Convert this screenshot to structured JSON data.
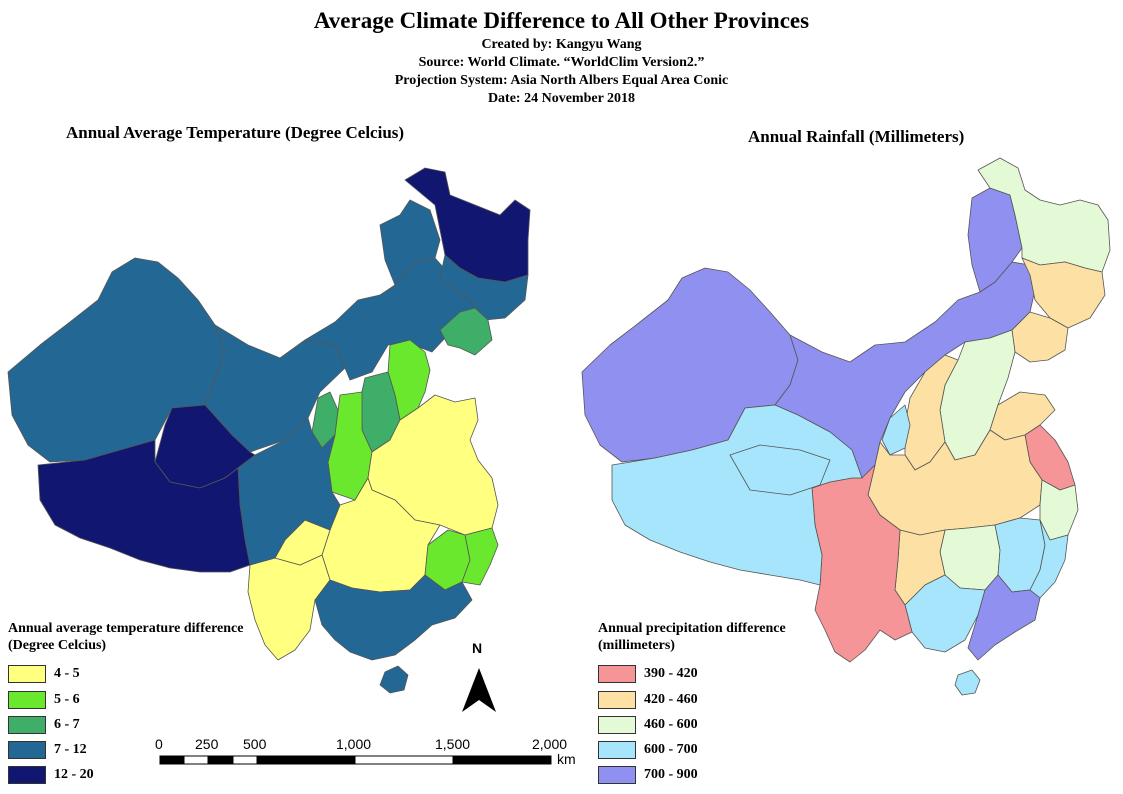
{
  "title": "Average Climate Difference to All Other Provinces",
  "credits": {
    "author": "Created by: Kangyu Wang",
    "source": "Source: World Climate. “WorldClim Version2.”",
    "projection": "Projection System: Asia North Albers Equal Area Conic",
    "date": "Date: 24 November 2018"
  },
  "maps": {
    "temperature": {
      "title": "Annual Average Temperature (Degree Celcius)",
      "legend_title_line1": "Annual average temperature difference",
      "legend_title_line2": "(Degree Celcius)",
      "classes": [
        {
          "label": "4 - 5",
          "color": "#ffff80"
        },
        {
          "label": "5 - 6",
          "color": "#6ae82e"
        },
        {
          "label": "6 - 7",
          "color": "#3fae68"
        },
        {
          "label": "7 - 12",
          "color": "#236894"
        },
        {
          "label": "12 - 20",
          "color": "#111770"
        }
      ]
    },
    "rainfall": {
      "title": "Annual Rainfall (Millimeters)",
      "legend_title_line1": "Annual precipitation difference",
      "legend_title_line2": "(millimeters)",
      "classes": [
        {
          "label": "390 - 420",
          "color": "#f59597"
        },
        {
          "label": "420 - 460",
          "color": "#fce0a4"
        },
        {
          "label": "460 - 600",
          "color": "#e4f9d6"
        },
        {
          "label": "600 - 700",
          "color": "#a6e5fb"
        },
        {
          "label": "700 - 900",
          "color": "#9090f0"
        }
      ]
    }
  },
  "scale_bar": {
    "ticks": [
      "0",
      "250",
      "500",
      "1,000",
      "1,500",
      "2,000"
    ],
    "unit": "km"
  },
  "north_arrow": {
    "label": "N"
  },
  "border_color": "#555555"
}
